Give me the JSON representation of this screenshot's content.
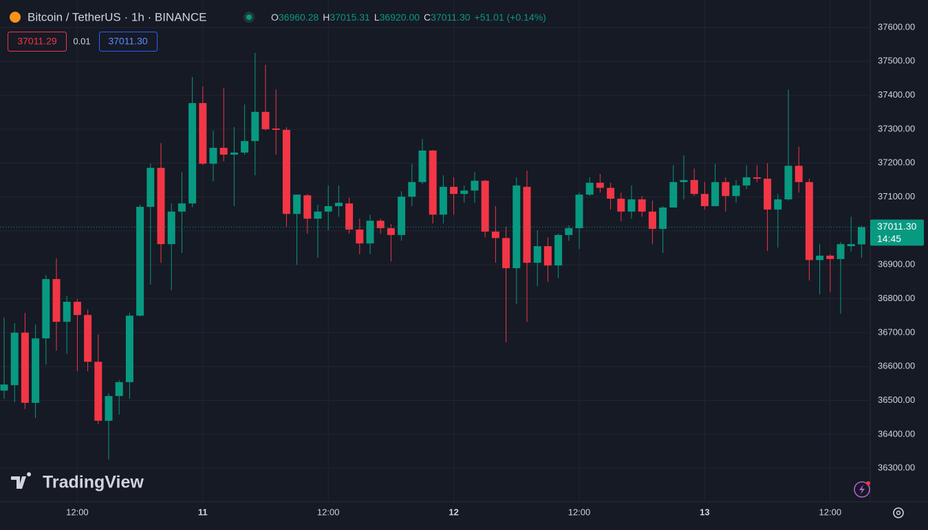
{
  "chart_data": {
    "type": "candlestick",
    "title": "Bitcoin / TetherUS · 1h · BINANCE",
    "header": {
      "o_key": "O",
      "o": "36960.28",
      "h_key": "H",
      "h": "37015.31",
      "l_key": "L",
      "l": "36920.00",
      "c_key": "C",
      "c": "37011.30",
      "change": "+51.01 (+0.14%)"
    },
    "bid": "37011.29",
    "spread": "0.01",
    "ask": "37011.30",
    "last_price_label": "37011.30",
    "countdown": "14:45",
    "watermark": "TradingView",
    "up_color": "#089981",
    "down_color": "#f23645",
    "categories": [
      null,
      null,
      null,
      null,
      null,
      null,
      null,
      "12:00",
      null,
      null,
      null,
      null,
      null,
      null,
      null,
      null,
      null,
      null,
      null,
      "11",
      null,
      null,
      null,
      null,
      null,
      null,
      null,
      null,
      null,
      null,
      null,
      "12:00",
      null,
      null,
      null,
      null,
      null,
      null,
      null,
      null,
      null,
      null,
      null,
      "12",
      null,
      null,
      null,
      null,
      null,
      null,
      null,
      null,
      null,
      null,
      null,
      "12:00",
      null,
      null,
      null,
      null,
      null,
      null,
      null,
      null,
      null,
      null,
      null,
      "13",
      null,
      null,
      null,
      null,
      null,
      null,
      null,
      null,
      null,
      null,
      null,
      "12:00",
      null,
      null,
      null
    ],
    "open": [
      36529,
      36545,
      36700,
      36493,
      36683,
      36858,
      36732,
      36791,
      36752,
      36614,
      36440,
      36513,
      36554,
      36750,
      37071,
      37186,
      36961,
      37057,
      37081,
      37377,
      37198,
      37245,
      37225,
      37231,
      37265,
      37351,
      37302,
      37298,
      37050,
      37105,
      37036,
      37057,
      37073,
      37081,
      37004,
      36963,
      37030,
      37008,
      36988,
      37101,
      37144,
      37237,
      37048,
      37130,
      37109,
      37119,
      37148,
      36998,
      36979,
      36890,
      37130,
      36906,
      36955,
      36898,
      36988,
      37008,
      37107,
      37142,
      37127,
      37095,
      37057,
      37093,
      37057,
      37006,
      37069,
      37144,
      37150,
      37109,
      37073,
      37144,
      37103,
      37134,
      37158,
      37154,
      37063,
      37093,
      37192,
      37144,
      36914,
      36927,
      36917,
      36955,
      36960.28
    ],
    "high": [
      36744,
      36728,
      36758,
      36724,
      36870,
      36919,
      36809,
      36799,
      36768,
      36695,
      36521,
      36560,
      36758,
      37077,
      37198,
      37259,
      37081,
      37174,
      37454,
      37426,
      37296,
      37421,
      37306,
      37373,
      37525,
      37490,
      37417,
      37306,
      37107,
      37109,
      37077,
      37134,
      37134,
      37097,
      37036,
      37048,
      37036,
      37020,
      37117,
      37198,
      37271,
      37239,
      37164,
      37158,
      37134,
      37174,
      37150,
      37073,
      37012,
      37158,
      37178,
      37002,
      36981,
      36992,
      37016,
      37113,
      37158,
      37168,
      37142,
      37113,
      37134,
      37103,
      37089,
      37073,
      37194,
      37223,
      37184,
      37144,
      37198,
      37158,
      37150,
      37194,
      37194,
      37200,
      37109,
      37417,
      37249,
      37154,
      36961,
      36931,
      36967,
      37042,
      37015.31
    ],
    "low": [
      36505,
      36495,
      36475,
      36448,
      36606,
      36647,
      36637,
      36586,
      36586,
      36430,
      36326,
      36458,
      36505,
      36748,
      36842,
      36906,
      36825,
      36935,
      37070,
      37194,
      37146,
      37205,
      37073,
      37225,
      37164,
      37296,
      37225,
      37012,
      36900,
      36992,
      36921,
      37002,
      37042,
      36992,
      36931,
      36931,
      36992,
      36910,
      36971,
      37073,
      37138,
      37022,
      37022,
      37048,
      37083,
      37083,
      36981,
      36906,
      36671,
      36785,
      36732,
      36837,
      36850,
      36860,
      36971,
      36947,
      37103,
      37113,
      37063,
      37028,
      37036,
      37042,
      36961,
      36935,
      37069,
      37093,
      37103,
      37063,
      37073,
      37057,
      37083,
      37123,
      37144,
      36941,
      36951,
      37089,
      37113,
      36854,
      36813,
      36819,
      36756,
      36939,
      36920
    ],
    "close": [
      36547,
      36700,
      36493,
      36683,
      36858,
      36732,
      36791,
      36752,
      36614,
      36440,
      36513,
      36554,
      36750,
      37071,
      37186,
      36961,
      37057,
      37081,
      37377,
      37198,
      37245,
      37225,
      37231,
      37265,
      37351,
      37300,
      37298,
      37050,
      37107,
      37036,
      37057,
      37073,
      37083,
      37004,
      36963,
      37030,
      37008,
      36988,
      37101,
      37144,
      37237,
      37048,
      37130,
      37109,
      37119,
      37148,
      36998,
      36979,
      36890,
      37134,
      36906,
      36955,
      36898,
      36988,
      37008,
      37107,
      37142,
      37127,
      37095,
      37057,
      37093,
      37057,
      37006,
      37069,
      37144,
      37150,
      37109,
      37073,
      37144,
      37103,
      37134,
      37158,
      37154,
      37063,
      37093,
      37192,
      37144,
      36914,
      36927,
      36917,
      36961,
      36961,
      37011.3
    ],
    "ylim": [
      36201,
      37681
    ],
    "yticks": [
      {
        "value": 36300,
        "label": "36300.00"
      },
      {
        "value": 36400,
        "label": "36400.00"
      },
      {
        "value": 36500,
        "label": "36500.00"
      },
      {
        "value": 36600,
        "label": "36600.00"
      },
      {
        "value": 36700,
        "label": "36700.00"
      },
      {
        "value": 36800,
        "label": "36800.00"
      },
      {
        "value": 36900,
        "label": "36900.00"
      },
      {
        "value": 37000,
        "label": "37000.00"
      },
      {
        "value": 37100,
        "label": "37100.00"
      },
      {
        "value": 37200,
        "label": "37200.00"
      },
      {
        "value": 37300,
        "label": "37300.00"
      },
      {
        "value": 37400,
        "label": "37400.00"
      },
      {
        "value": 37500,
        "label": "37500.00"
      },
      {
        "value": 37600,
        "label": "37600.00"
      }
    ],
    "grid": true
  }
}
